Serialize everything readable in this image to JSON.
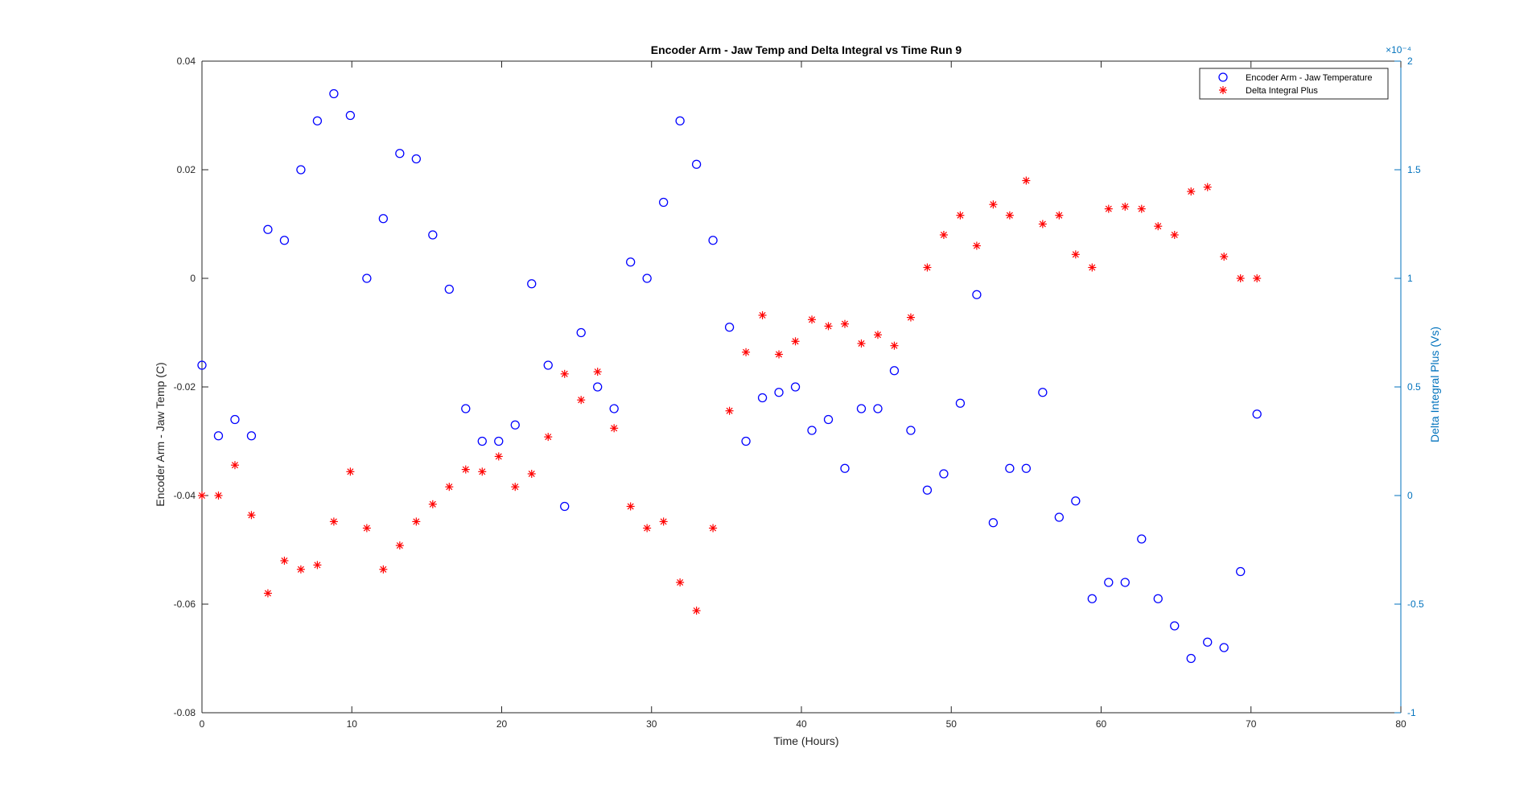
{
  "chart_data": {
    "type": "scatter",
    "title": "Encoder Arm - Jaw Temp and Delta Integral vs Time Run 9",
    "xlabel": "Time (Hours)",
    "ylabel_left": "Encoder Arm - Jaw Temp (C)",
    "ylabel_right": "Delta Integral Plus (Vs)",
    "right_axis_exponent": "×10⁻⁴",
    "xlim": [
      0,
      80
    ],
    "ylim_left": [
      -0.08,
      0.04
    ],
    "ylim_right": [
      -1,
      2
    ],
    "x_ticks": [
      "0",
      "10",
      "20",
      "30",
      "40",
      "50",
      "60",
      "70",
      "80"
    ],
    "y_left_ticks": [
      "-0.08",
      "-0.06",
      "-0.04",
      "-0.02",
      "0",
      "0.02",
      "0.04"
    ],
    "y_right_ticks": [
      "-1",
      "-0.5",
      "0",
      "0.5",
      "1",
      "1.5",
      "2"
    ],
    "grid": false,
    "legend_position": "top-right",
    "colors": {
      "temp": "#0000FF",
      "delta": "#FF0000",
      "right_axis": "#0072BD",
      "axes": "#262626"
    },
    "series": [
      {
        "name": "Encoder Arm - Jaw Temperature",
        "axis": "left",
        "marker": "circle",
        "x": [
          0.0,
          1.1,
          2.2,
          3.3,
          4.4,
          5.5,
          6.6,
          7.7,
          8.8,
          9.9,
          11.0,
          12.1,
          13.2,
          14.3,
          15.4,
          16.5,
          17.6,
          18.7,
          19.8,
          20.9,
          22.0,
          23.1,
          24.2,
          25.3,
          26.4,
          27.5,
          28.6,
          29.7,
          30.8,
          31.9,
          33.0,
          34.1,
          35.2,
          36.3,
          37.4,
          38.5,
          39.6,
          40.7,
          41.8,
          42.9,
          44.0,
          45.1,
          46.2,
          47.3,
          48.4,
          49.5,
          50.6,
          51.7,
          52.8,
          53.9,
          55.0,
          56.1,
          57.2,
          58.3,
          59.4,
          60.5,
          61.6,
          62.7,
          63.8,
          64.9,
          66.0,
          67.1,
          68.2,
          69.3,
          70.4
        ],
        "y": [
          -0.016,
          -0.029,
          -0.026,
          -0.029,
          0.009,
          0.007,
          0.02,
          0.029,
          0.034,
          0.03,
          0.0,
          0.011,
          0.023,
          0.022,
          0.008,
          -0.002,
          -0.024,
          -0.03,
          -0.03,
          -0.027,
          -0.001,
          -0.016,
          -0.042,
          -0.01,
          -0.02,
          -0.024,
          0.003,
          0.0,
          0.014,
          0.029,
          0.021,
          0.007,
          -0.009,
          -0.03,
          -0.022,
          -0.021,
          -0.02,
          -0.028,
          -0.026,
          -0.035,
          -0.024,
          -0.024,
          -0.017,
          -0.028,
          -0.039,
          -0.036,
          -0.023,
          -0.003,
          -0.045,
          -0.035,
          -0.035,
          -0.021,
          -0.044,
          -0.041,
          -0.059,
          -0.056,
          -0.056,
          -0.048,
          -0.059,
          -0.064,
          -0.07,
          -0.067,
          -0.068,
          -0.054,
          -0.025
        ]
      },
      {
        "name": "Delta Integral Plus",
        "axis": "right",
        "marker": "asterisk",
        "x": [
          0.0,
          1.1,
          2.2,
          3.3,
          4.4,
          5.5,
          6.6,
          7.7,
          8.8,
          9.9,
          11.0,
          12.1,
          13.2,
          14.3,
          15.4,
          16.5,
          17.6,
          18.7,
          19.8,
          20.9,
          22.0,
          23.1,
          24.2,
          25.3,
          26.4,
          27.5,
          28.6,
          29.7,
          30.8,
          31.9,
          33.0,
          34.1,
          35.2,
          36.3,
          37.4,
          38.5,
          39.6,
          40.7,
          41.8,
          42.9,
          44.0,
          45.1,
          46.2,
          47.3,
          48.4,
          49.5,
          50.6,
          51.7,
          52.8,
          53.9,
          55.0,
          56.1,
          57.2,
          58.3,
          59.4,
          60.5,
          61.6,
          62.7,
          63.8,
          64.9,
          66.0,
          67.1,
          68.2,
          69.3,
          70.4
        ],
        "y": [
          0.0,
          0.0,
          0.14,
          -0.09,
          -0.45,
          -0.3,
          -0.34,
          -0.32,
          -0.12,
          0.11,
          -0.15,
          -0.34,
          -0.23,
          -0.12,
          -0.04,
          0.04,
          0.12,
          0.11,
          0.18,
          0.04,
          0.1,
          0.27,
          0.56,
          0.44,
          0.57,
          0.31,
          -0.05,
          -0.15,
          -0.12,
          -0.4,
          -0.53,
          -0.15,
          0.39,
          0.66,
          0.83,
          0.65,
          0.71,
          0.81,
          0.78,
          0.79,
          0.7,
          0.74,
          0.69,
          0.82,
          1.05,
          1.2,
          1.29,
          1.15,
          1.34,
          1.29,
          1.45,
          1.25,
          1.29,
          1.11,
          1.05,
          1.32,
          1.33,
          1.32,
          1.24,
          1.2,
          1.4,
          1.42,
          1.1,
          1.0,
          1.0
        ]
      }
    ]
  }
}
